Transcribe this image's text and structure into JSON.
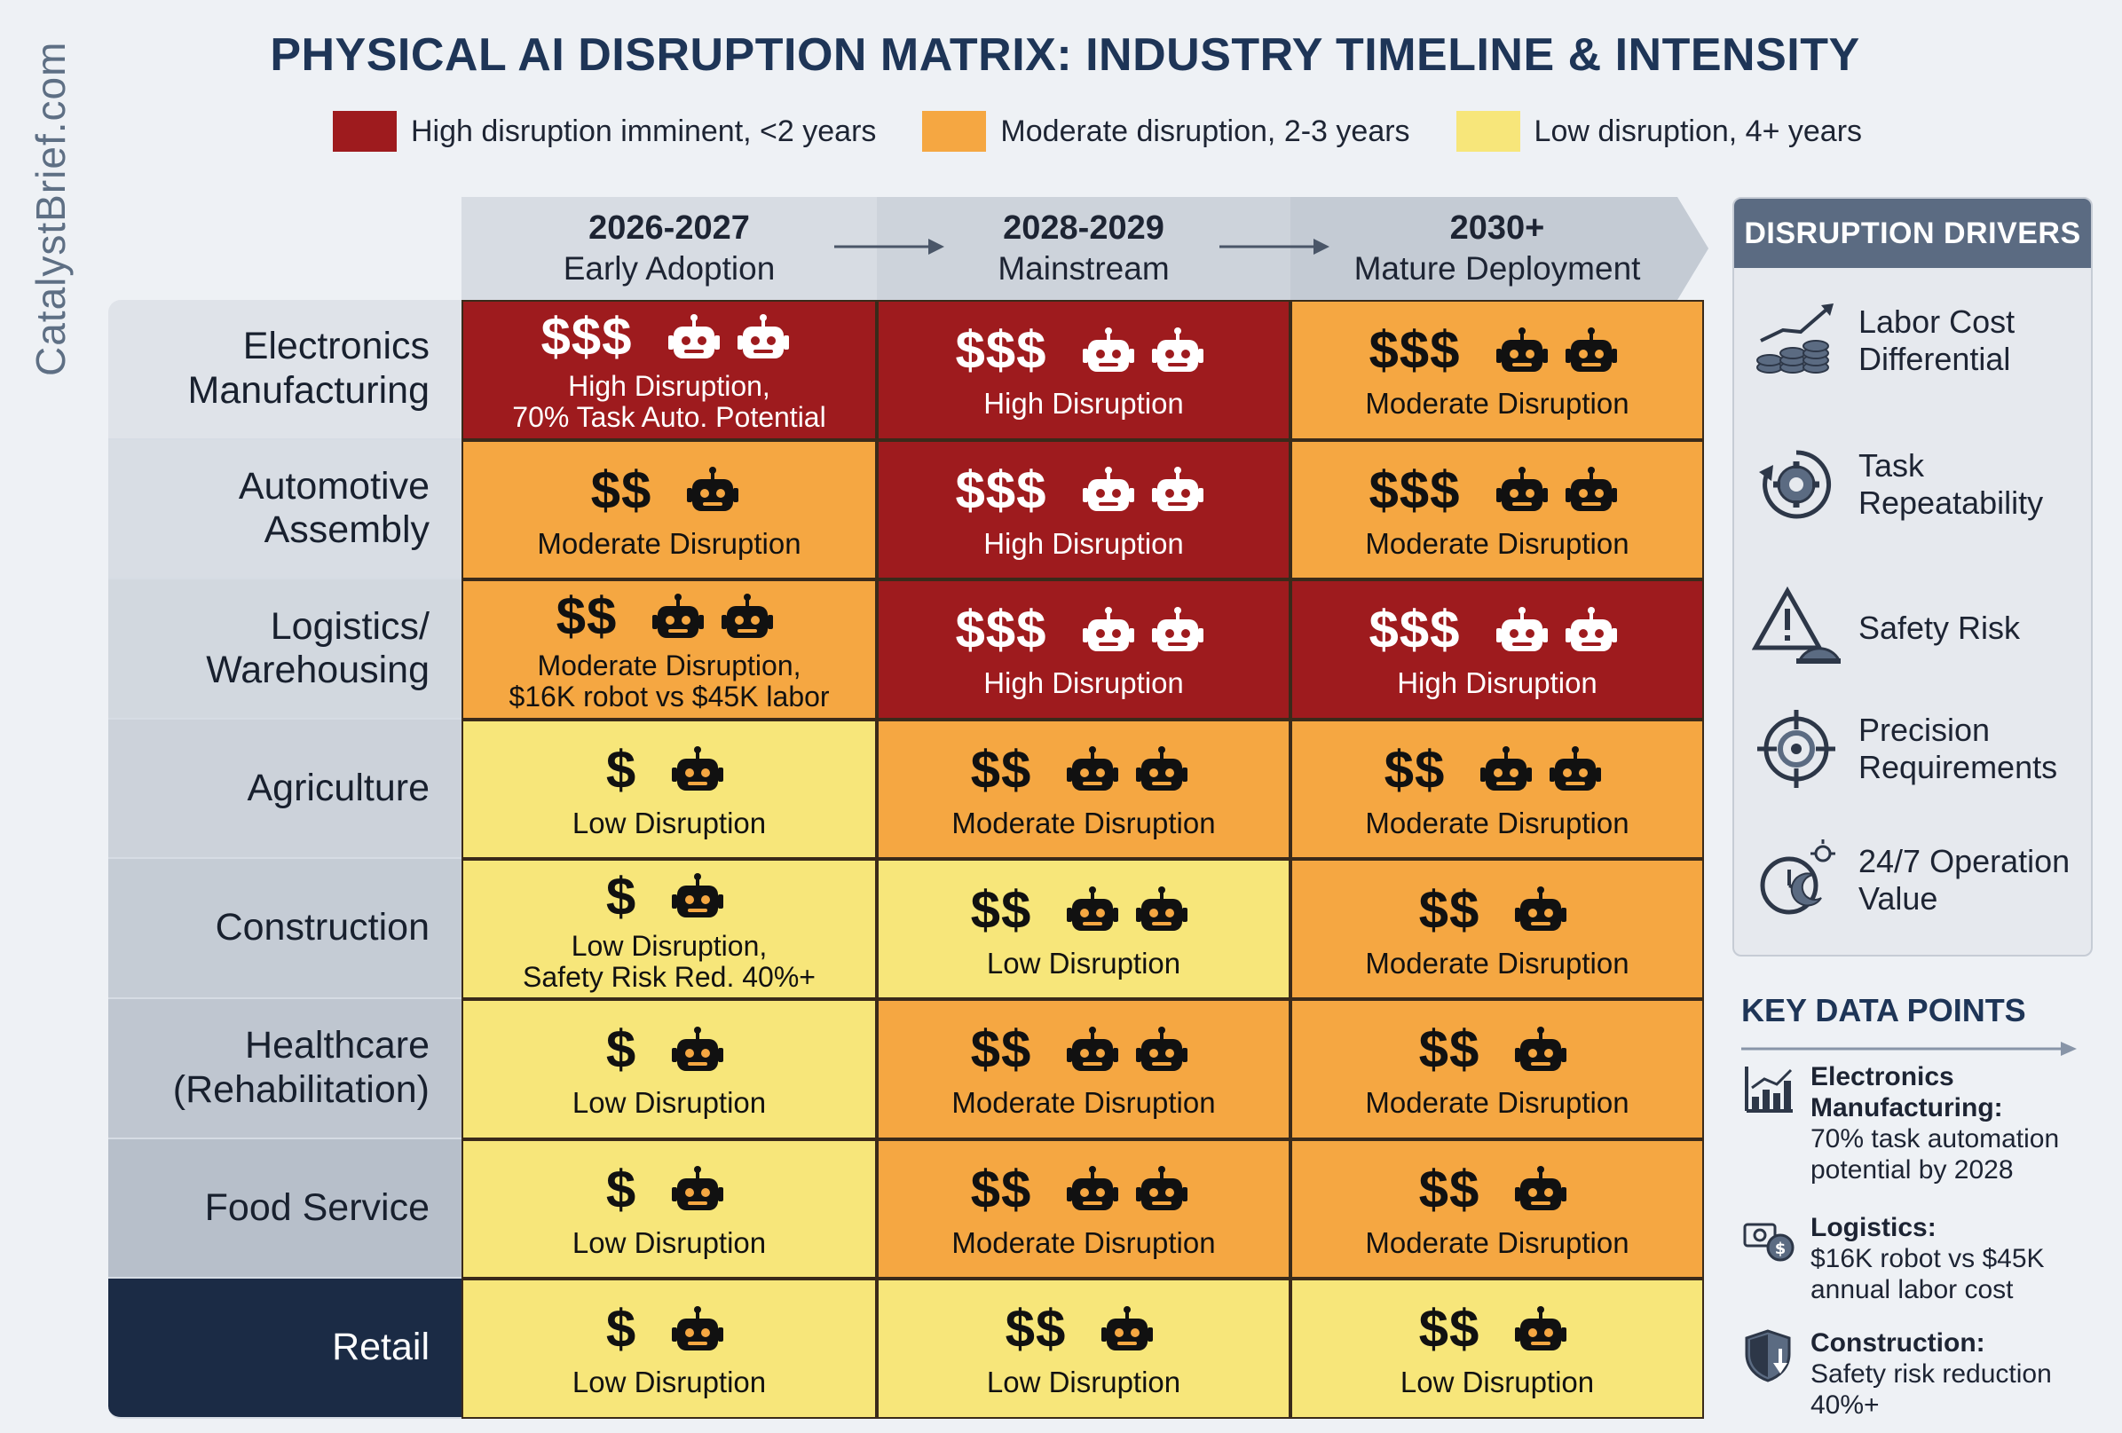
{
  "watermark": "CatalystBrief.com",
  "title": "PHYSICAL AI DISRUPTION MATRIX: INDUSTRY TIMELINE & INTENSITY",
  "legend": [
    {
      "label": "High disruption imminent, <2 years",
      "color": "#9e1b1e"
    },
    {
      "label": "Moderate disruption, 2-3 years",
      "color": "#f5a742"
    },
    {
      "label": "Low disruption, 4+ years",
      "color": "#f7e67a"
    }
  ],
  "columns": [
    {
      "year": "2026-2027",
      "phase": "Early Adoption"
    },
    {
      "year": "2028-2029",
      "phase": "Mainstream"
    },
    {
      "year": "2030+",
      "phase": "Mature Deployment"
    }
  ],
  "rows": [
    {
      "industry": "Electronics\nManufacturing",
      "cells": [
        {
          "level": "high",
          "cost": "$$$",
          "robots": 2,
          "label": "High Disruption,\n70% Task Auto. Potential"
        },
        {
          "level": "high",
          "cost": "$$$",
          "robots": 2,
          "label": "High Disruption"
        },
        {
          "level": "moderate",
          "cost": "$$$",
          "robots": 2,
          "label": "Moderate Disruption"
        }
      ]
    },
    {
      "industry": "Automotive\nAssembly",
      "cells": [
        {
          "level": "moderate",
          "cost": "$$",
          "robots": 1,
          "label": "Moderate Disruption"
        },
        {
          "level": "high",
          "cost": "$$$",
          "robots": 2,
          "label": "High Disruption"
        },
        {
          "level": "moderate",
          "cost": "$$$",
          "robots": 2,
          "label": "Moderate Disruption"
        }
      ]
    },
    {
      "industry": "Logistics/\nWarehousing",
      "cells": [
        {
          "level": "moderate",
          "cost": "$$",
          "robots": 2,
          "label": "Moderate Disruption,\n$16K robot vs $45K labor"
        },
        {
          "level": "high",
          "cost": "$$$",
          "robots": 2,
          "label": "High Disruption"
        },
        {
          "level": "high",
          "cost": "$$$",
          "robots": 2,
          "label": "High Disruption"
        }
      ]
    },
    {
      "industry": "Agriculture",
      "cells": [
        {
          "level": "low",
          "cost": "$",
          "robots": 1,
          "label": "Low Disruption"
        },
        {
          "level": "moderate",
          "cost": "$$",
          "robots": 2,
          "label": "Moderate Disruption"
        },
        {
          "level": "moderate",
          "cost": "$$",
          "robots": 2,
          "label": "Moderate Disruption"
        }
      ]
    },
    {
      "industry": "Construction",
      "cells": [
        {
          "level": "low",
          "cost": "$",
          "robots": 1,
          "label": "Low Disruption,\nSafety Risk Red. 40%+"
        },
        {
          "level": "low",
          "cost": "$$",
          "robots": 2,
          "label": "Low Disruption"
        },
        {
          "level": "moderate",
          "cost": "$$",
          "robots": 1,
          "label": "Moderate Disruption"
        }
      ]
    },
    {
      "industry": "Healthcare\n(Rehabilitation)",
      "cells": [
        {
          "level": "low",
          "cost": "$",
          "robots": 1,
          "label": "Low Disruption"
        },
        {
          "level": "moderate",
          "cost": "$$",
          "robots": 2,
          "label": "Moderate Disruption"
        },
        {
          "level": "moderate",
          "cost": "$$",
          "robots": 1,
          "label": "Moderate Disruption"
        }
      ]
    },
    {
      "industry": "Food Service",
      "cells": [
        {
          "level": "low",
          "cost": "$",
          "robots": 1,
          "label": "Low Disruption"
        },
        {
          "level": "moderate",
          "cost": "$$",
          "robots": 2,
          "label": "Moderate Disruption"
        },
        {
          "level": "moderate",
          "cost": "$$",
          "robots": 1,
          "label": "Moderate Disruption"
        }
      ]
    },
    {
      "industry": "Retail",
      "cells": [
        {
          "level": "low",
          "cost": "$",
          "robots": 1,
          "label": "Low Disruption"
        },
        {
          "level": "low",
          "cost": "$$",
          "robots": 1,
          "label": "Low Disruption"
        },
        {
          "level": "low",
          "cost": "$$",
          "robots": 1,
          "label": "Low Disruption"
        }
      ]
    }
  ],
  "drivers": {
    "title": "DISRUPTION DRIVERS",
    "items": [
      {
        "label": "Labor Cost\nDifferential",
        "icon": "coins-chart-icon"
      },
      {
        "label": "Task\nRepeatability",
        "icon": "gear-cycle-icon"
      },
      {
        "label": "Safety Risk",
        "icon": "warning-hardhat-icon"
      },
      {
        "label": "Precision\nRequirements",
        "icon": "crosshair-icon"
      },
      {
        "label": "24/7 Operation\nValue",
        "icon": "clock-moon-icon"
      }
    ]
  },
  "key_data": {
    "title": "KEY DATA POINTS",
    "items": [
      {
        "head": "Electronics Manufacturing:",
        "body": "70% task automation potential by 2028",
        "icon": "bar-chart-icon"
      },
      {
        "head": "Logistics:",
        "body": "$16K robot vs $45K annual labor cost",
        "icon": "money-compare-icon"
      },
      {
        "head": "Construction:",
        "body": "Safety risk reduction 40%+",
        "icon": "shield-down-icon"
      }
    ]
  },
  "colors": {
    "high": "#9e1b1e",
    "moderate": "#f5a742",
    "low": "#f7e67a",
    "header_band": "#d7dce3",
    "title": "#1e3557",
    "retail_label_bg": "#1b2b45"
  }
}
